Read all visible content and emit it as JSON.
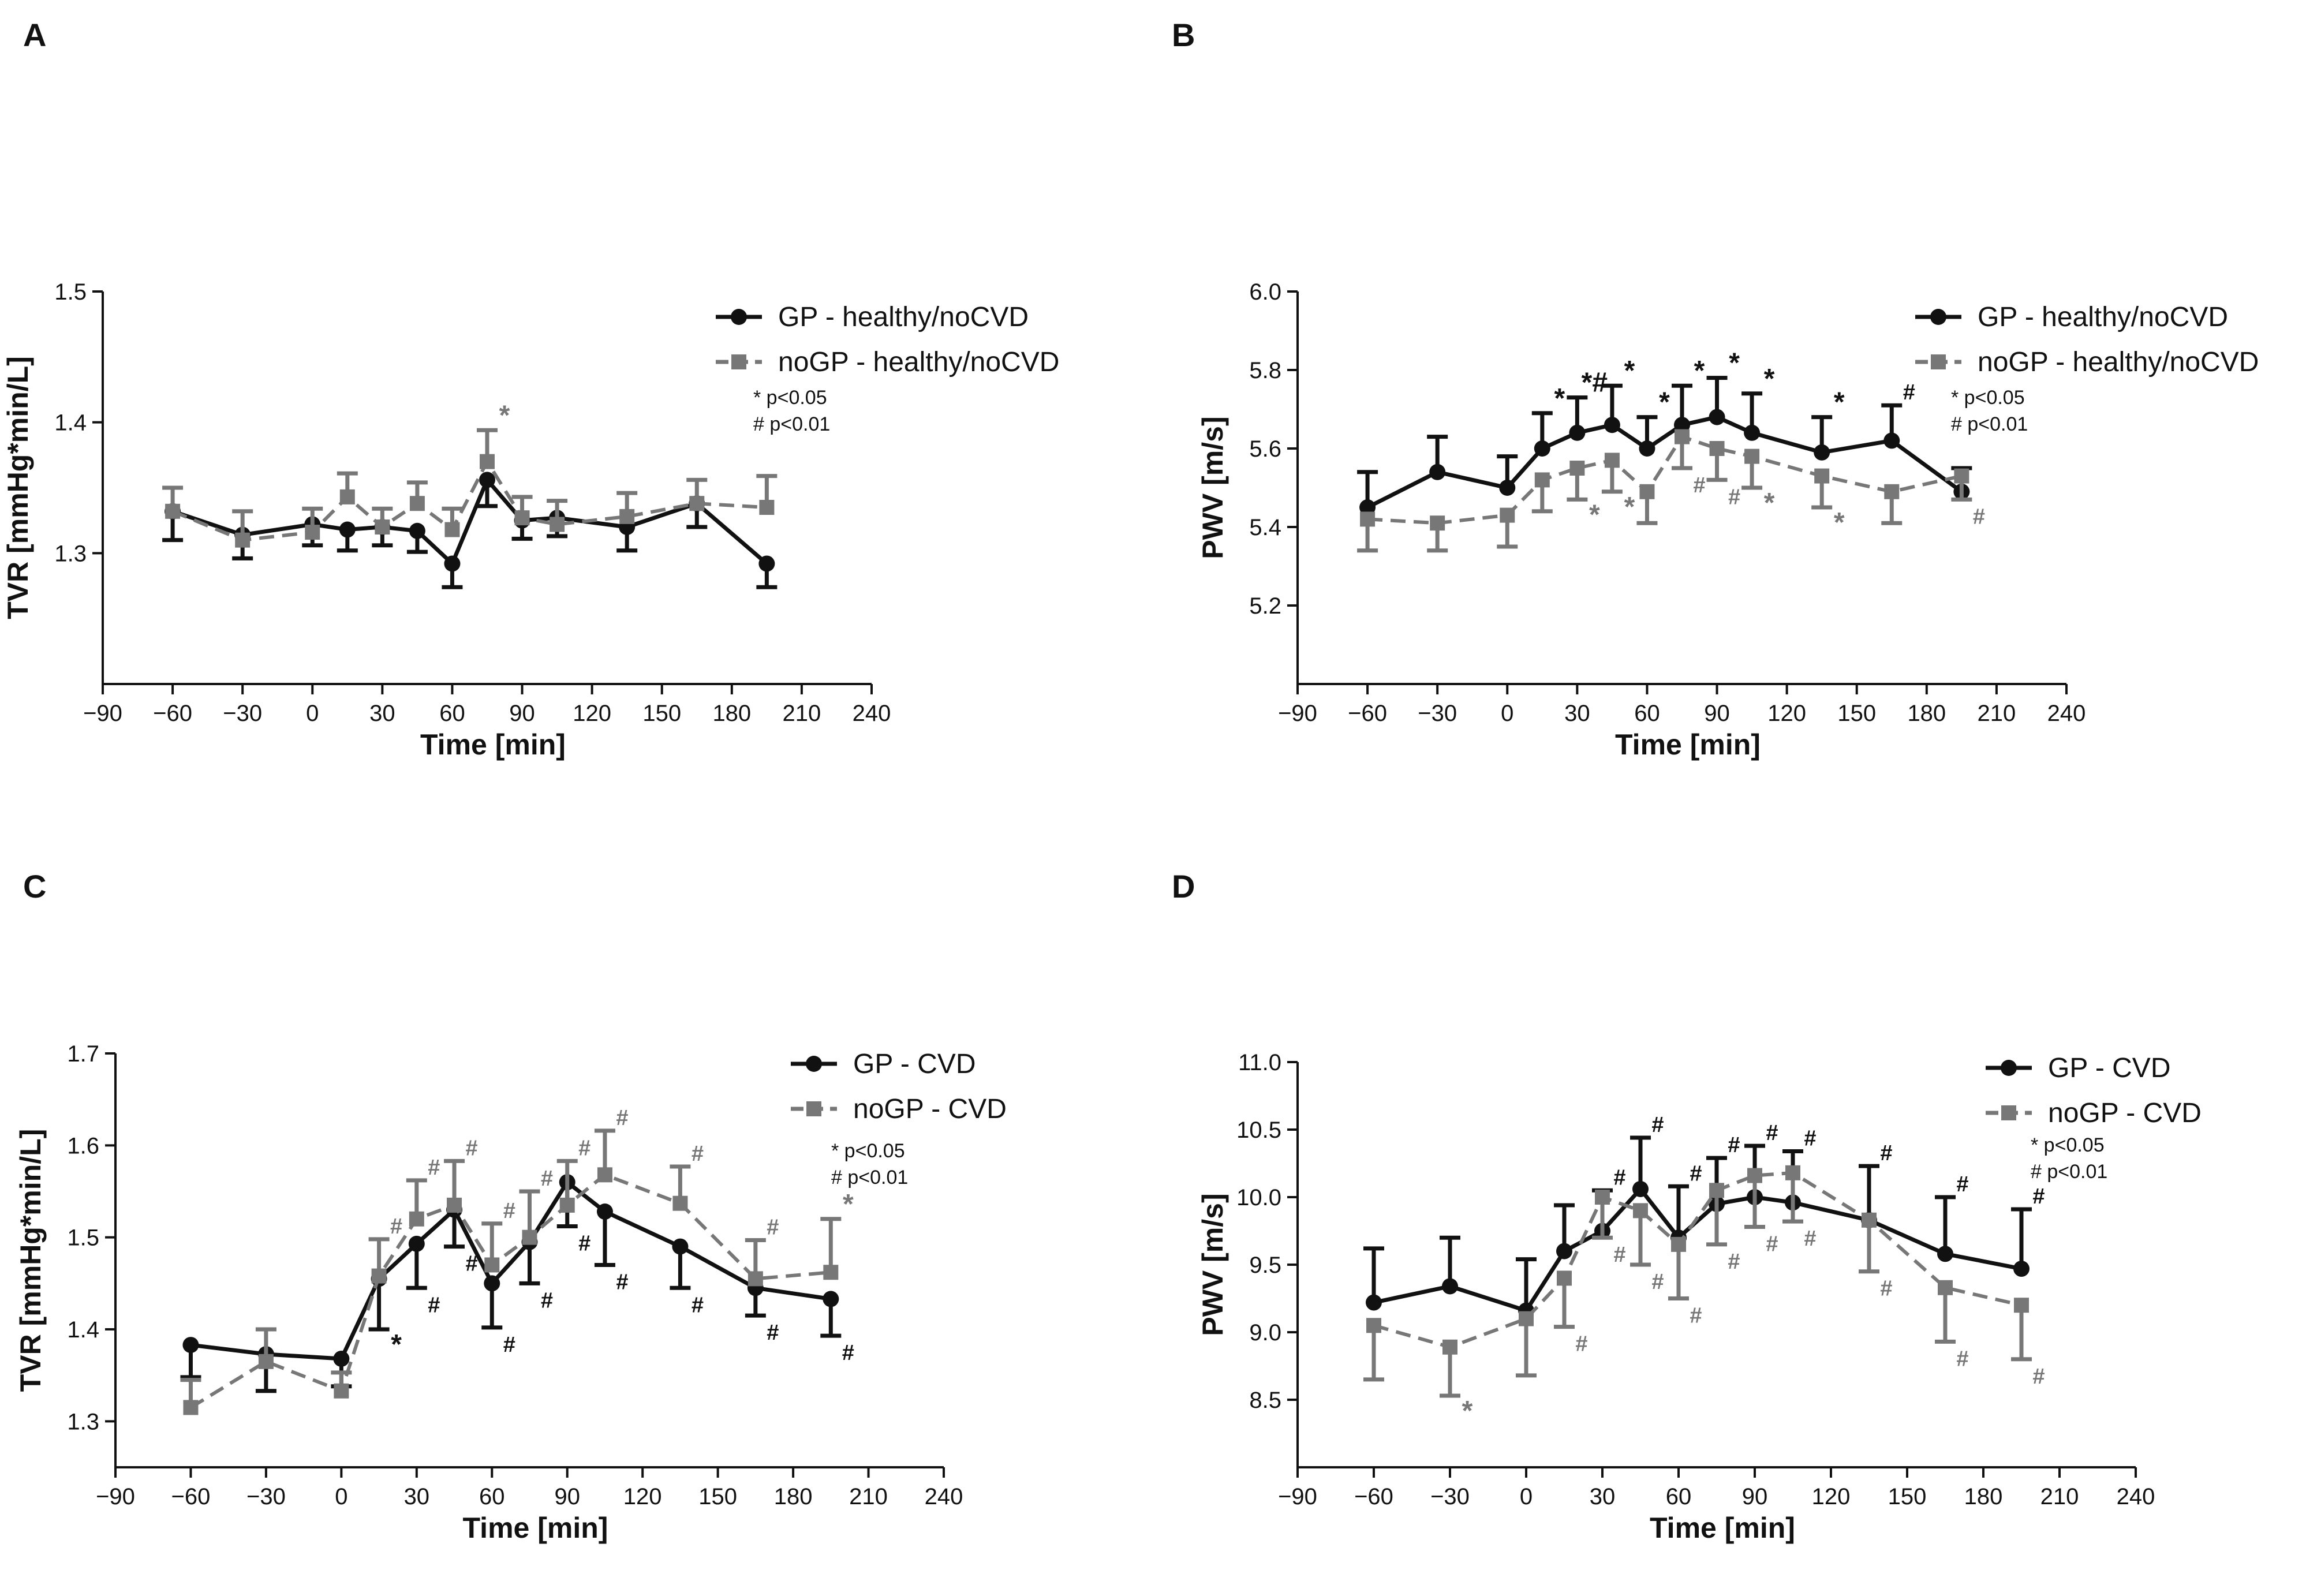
{
  "chart_data": [
    {
      "panel": "A",
      "type": "line",
      "xlabel": "Time [min]",
      "ylabel": "TVR [mmHg*min/L]",
      "xlim": [
        -90,
        240
      ],
      "ylim": [
        1.2,
        1.5
      ],
      "xticks": [
        -90,
        -60,
        -30,
        0,
        30,
        60,
        90,
        120,
        150,
        180,
        210,
        240
      ],
      "yticks": [
        1.3,
        1.4,
        1.5
      ],
      "legend": [
        "GP - healthy/noCVD",
        "noGP - healthy/noCVD"
      ],
      "sig_note": [
        "* p<0.05",
        "# p<0.01"
      ],
      "series": [
        {
          "name": "GP - healthy/noCVD",
          "color": "#111111",
          "marker": "circle",
          "dash": false,
          "x": [
            -60,
            -30,
            0,
            15,
            30,
            45,
            60,
            75,
            90,
            105,
            135,
            165,
            195
          ],
          "y": [
            1.332,
            1.314,
            1.322,
            1.318,
            1.32,
            1.317,
            1.292,
            1.356,
            1.325,
            1.327,
            1.32,
            1.338,
            1.292
          ],
          "err": [
            0.022,
            0.018,
            0.016,
            0.016,
            0.014,
            0.016,
            0.018,
            0.02,
            0.014,
            0.014,
            0.018,
            0.018,
            0.018
          ],
          "err_dir": "down",
          "annotations": []
        },
        {
          "name": "noGP - healthy/noCVD",
          "color": "#777777",
          "marker": "square",
          "dash": true,
          "x": [
            -60,
            -30,
            0,
            15,
            30,
            45,
            60,
            75,
            90,
            105,
            135,
            165,
            195
          ],
          "y": [
            1.332,
            1.31,
            1.316,
            1.343,
            1.32,
            1.338,
            1.318,
            1.37,
            1.327,
            1.322,
            1.328,
            1.338,
            1.335
          ],
          "err": [
            0.018,
            0.022,
            0.018,
            0.018,
            0.014,
            0.016,
            0.016,
            0.024,
            0.016,
            0.018,
            0.018,
            0.018,
            0.024
          ],
          "err_dir": "up",
          "annotations": [
            {
              "x": 75,
              "text": "*"
            }
          ]
        }
      ]
    },
    {
      "panel": "B",
      "type": "line",
      "xlabel": "Time [min]",
      "ylabel": "PWV [m/s]",
      "xlim": [
        -90,
        240
      ],
      "ylim": [
        5.0,
        6.0
      ],
      "xticks": [
        -90,
        -60,
        -30,
        0,
        30,
        60,
        90,
        120,
        150,
        180,
        210,
        240
      ],
      "yticks": [
        5.2,
        5.4,
        5.6,
        5.8,
        6.0
      ],
      "legend": [
        "GP - healthy/noCVD",
        "noGP - healthy/noCVD"
      ],
      "sig_note": [
        "* p<0.05",
        "# p<0.01"
      ],
      "series": [
        {
          "name": "GP - healthy/noCVD",
          "color": "#111111",
          "marker": "circle",
          "dash": false,
          "x": [
            -60,
            -30,
            0,
            15,
            30,
            45,
            60,
            75,
            90,
            105,
            135,
            165,
            195
          ],
          "y": [
            5.45,
            5.54,
            5.5,
            5.6,
            5.64,
            5.66,
            5.6,
            5.66,
            5.68,
            5.64,
            5.59,
            5.62,
            5.49
          ],
          "err": [
            0.09,
            0.09,
            0.08,
            0.09,
            0.09,
            0.1,
            0.08,
            0.1,
            0.1,
            0.1,
            0.09,
            0.09,
            0.06
          ],
          "err_dir": "up",
          "annotations": [
            {
              "x": 15,
              "text": "*"
            },
            {
              "x": 30,
              "text": "*#"
            },
            {
              "x": 45,
              "text": "*"
            },
            {
              "x": 60,
              "text": "*"
            },
            {
              "x": 75,
              "text": "*"
            },
            {
              "x": 90,
              "text": "*"
            },
            {
              "x": 105,
              "text": "*"
            },
            {
              "x": 135,
              "text": "*"
            },
            {
              "x": 165,
              "text": "#"
            }
          ]
        },
        {
          "name": "noGP - healthy/noCVD",
          "color": "#777777",
          "marker": "square",
          "dash": true,
          "x": [
            -60,
            -30,
            0,
            15,
            30,
            45,
            60,
            75,
            90,
            105,
            135,
            165,
            195
          ],
          "y": [
            5.42,
            5.41,
            5.43,
            5.52,
            5.55,
            5.57,
            5.49,
            5.63,
            5.6,
            5.58,
            5.53,
            5.49,
            5.53
          ],
          "err": [
            0.08,
            0.07,
            0.08,
            0.08,
            0.08,
            0.08,
            0.08,
            0.08,
            0.08,
            0.08,
            0.08,
            0.08,
            0.06
          ],
          "err_dir": "down",
          "annotations": [
            {
              "x": 30,
              "text": "*"
            },
            {
              "x": 45,
              "text": "*"
            },
            {
              "x": 75,
              "text": "#"
            },
            {
              "x": 90,
              "text": "#"
            },
            {
              "x": 105,
              "text": "*"
            },
            {
              "x": 135,
              "text": "*"
            },
            {
              "x": 195,
              "text": "#"
            }
          ]
        }
      ]
    },
    {
      "panel": "C",
      "type": "line",
      "xlabel": "Time [min]",
      "ylabel": "TVR [mmHg*min/L]",
      "xlim": [
        -90,
        240
      ],
      "ylim": [
        1.25,
        1.7
      ],
      "xticks": [
        -90,
        -60,
        -30,
        0,
        30,
        60,
        90,
        120,
        150,
        180,
        210,
        240
      ],
      "yticks": [
        1.3,
        1.4,
        1.5,
        1.6,
        1.7
      ],
      "legend": [
        "GP - CVD",
        "noGP - CVD"
      ],
      "sig_note": [
        "* p<0.05",
        "# p<0.01"
      ],
      "series": [
        {
          "name": "GP - CVD",
          "color": "#111111",
          "marker": "circle",
          "dash": false,
          "x": [
            -60,
            -30,
            0,
            15,
            30,
            45,
            60,
            75,
            90,
            105,
            135,
            165,
            195
          ],
          "y": [
            1.383,
            1.373,
            1.368,
            1.455,
            1.493,
            1.53,
            1.45,
            1.495,
            1.56,
            1.528,
            1.49,
            1.445,
            1.433
          ],
          "err": [
            0.035,
            0.04,
            0.03,
            0.055,
            0.048,
            0.04,
            0.048,
            0.045,
            0.048,
            0.058,
            0.045,
            0.03,
            0.04
          ],
          "err_dir": "down",
          "annotations": [
            {
              "x": 15,
              "text": "*"
            },
            {
              "x": 30,
              "text": "#"
            },
            {
              "x": 45,
              "text": "#"
            },
            {
              "x": 60,
              "text": "#"
            },
            {
              "x": 75,
              "text": "#"
            },
            {
              "x": 90,
              "text": "#"
            },
            {
              "x": 105,
              "text": "#"
            },
            {
              "x": 135,
              "text": "#"
            },
            {
              "x": 165,
              "text": "#"
            },
            {
              "x": 195,
              "text": "#"
            }
          ]
        },
        {
          "name": "noGP - CVD",
          "color": "#777777",
          "marker": "square",
          "dash": true,
          "x": [
            -60,
            -30,
            0,
            15,
            30,
            45,
            60,
            75,
            90,
            105,
            135,
            165,
            195
          ],
          "y": [
            1.315,
            1.365,
            1.333,
            1.458,
            1.52,
            1.535,
            1.47,
            1.5,
            1.535,
            1.568,
            1.537,
            1.455,
            1.462
          ],
          "err": [
            0.03,
            0.035,
            0.02,
            0.04,
            0.042,
            0.048,
            0.045,
            0.05,
            0.048,
            0.048,
            0.04,
            0.042,
            0.058
          ],
          "err_dir": "up",
          "annotations": [
            {
              "x": 15,
              "text": "#"
            },
            {
              "x": 30,
              "text": "#"
            },
            {
              "x": 45,
              "text": "#"
            },
            {
              "x": 60,
              "text": "#"
            },
            {
              "x": 75,
              "text": "#"
            },
            {
              "x": 90,
              "text": "#"
            },
            {
              "x": 105,
              "text": "#"
            },
            {
              "x": 135,
              "text": "#"
            },
            {
              "x": 165,
              "text": "#"
            },
            {
              "x": 195,
              "text": "*"
            }
          ]
        }
      ]
    },
    {
      "panel": "D",
      "type": "line",
      "xlabel": "Time [min]",
      "ylabel": "PWV [m/s]",
      "xlim": [
        -90,
        240
      ],
      "ylim": [
        8.0,
        11.0
      ],
      "xticks": [
        -90,
        -60,
        -30,
        0,
        30,
        60,
        90,
        120,
        150,
        180,
        210,
        240
      ],
      "yticks": [
        8.5,
        9.0,
        9.5,
        10.0,
        10.5,
        11.0
      ],
      "legend": [
        "GP - CVD",
        "noGP - CVD"
      ],
      "sig_note": [
        "* p<0.05",
        "# p<0.01"
      ],
      "series": [
        {
          "name": "GP - CVD",
          "color": "#111111",
          "marker": "circle",
          "dash": false,
          "x": [
            -60,
            -30,
            0,
            15,
            30,
            45,
            60,
            75,
            90,
            105,
            135,
            165,
            195
          ],
          "y": [
            9.22,
            9.34,
            9.16,
            9.6,
            9.75,
            10.06,
            9.7,
            9.95,
            10.0,
            9.96,
            9.83,
            9.58,
            9.47
          ],
          "err": [
            0.4,
            0.36,
            0.38,
            0.34,
            0.3,
            0.38,
            0.38,
            0.34,
            0.38,
            0.38,
            0.4,
            0.42,
            0.44
          ],
          "err_dir": "up",
          "annotations": [
            {
              "x": 30,
              "text": "#"
            },
            {
              "x": 45,
              "text": "#"
            },
            {
              "x": 60,
              "text": "#"
            },
            {
              "x": 75,
              "text": "#"
            },
            {
              "x": 90,
              "text": "#"
            },
            {
              "x": 105,
              "text": "#"
            },
            {
              "x": 135,
              "text": "#"
            },
            {
              "x": 165,
              "text": "#"
            },
            {
              "x": 195,
              "text": "#"
            }
          ]
        },
        {
          "name": "noGP - CVD",
          "color": "#777777",
          "marker": "square",
          "dash": true,
          "x": [
            -60,
            -30,
            0,
            15,
            30,
            45,
            60,
            75,
            90,
            105,
            135,
            165,
            195
          ],
          "y": [
            9.05,
            8.89,
            9.1,
            9.4,
            10.0,
            9.9,
            9.65,
            10.05,
            10.16,
            10.18,
            9.83,
            9.33,
            9.2
          ],
          "err": [
            0.4,
            0.36,
            0.42,
            0.36,
            0.3,
            0.4,
            0.4,
            0.4,
            0.38,
            0.36,
            0.38,
            0.4,
            0.4
          ],
          "err_dir": "down",
          "annotations": [
            {
              "x": -30,
              "text": "*"
            },
            {
              "x": 15,
              "text": "#"
            },
            {
              "x": 30,
              "text": "#"
            },
            {
              "x": 45,
              "text": "#"
            },
            {
              "x": 60,
              "text": "#"
            },
            {
              "x": 75,
              "text": "#"
            },
            {
              "x": 90,
              "text": "#"
            },
            {
              "x": 105,
              "text": "#"
            },
            {
              "x": 135,
              "text": "#"
            },
            {
              "x": 165,
              "text": "#"
            },
            {
              "x": 195,
              "text": "#"
            }
          ]
        }
      ]
    }
  ]
}
